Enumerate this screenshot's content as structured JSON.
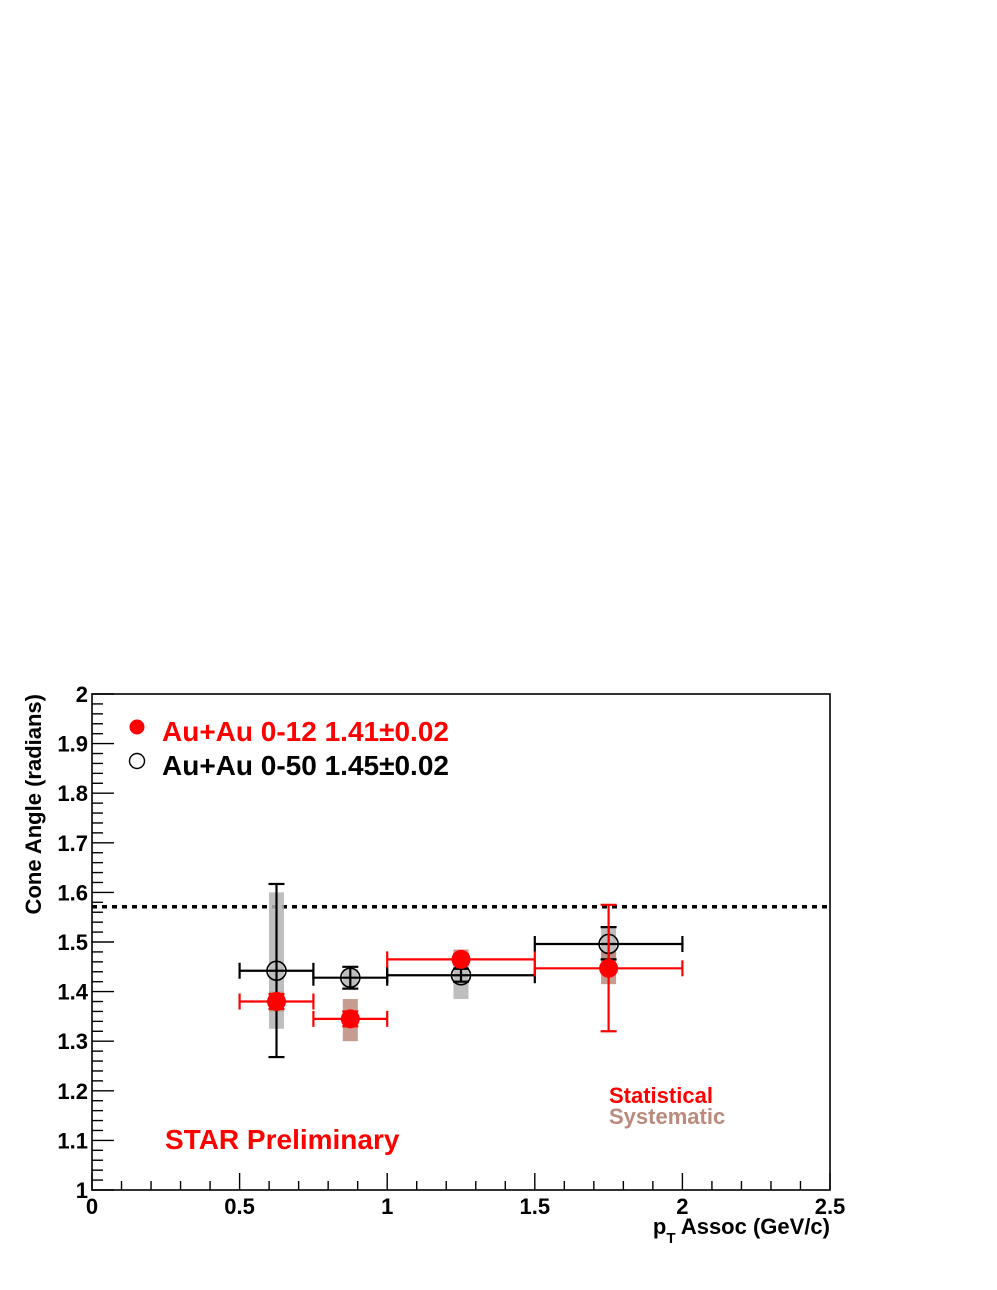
{
  "chart_data": {
    "type": "scatter",
    "title": "",
    "xlabel_main": "p",
    "xlabel_sub": "T",
    "xlabel_rest": " Assoc (GeV/c)",
    "ylabel": "Cone Angle (radians)",
    "xlim": [
      0,
      2.5
    ],
    "ylim": [
      1,
      2
    ],
    "x_ticks": [
      {
        "value": 0,
        "label": "0"
      },
      {
        "value": 0.5,
        "label": "0.5"
      },
      {
        "value": 1,
        "label": "1"
      },
      {
        "value": 1.5,
        "label": "1.5"
      },
      {
        "value": 2,
        "label": "2"
      },
      {
        "value": 2.5,
        "label": "2.5"
      }
    ],
    "y_ticks": [
      {
        "value": 1,
        "label": "1"
      },
      {
        "value": 1.1,
        "label": "1.1"
      },
      {
        "value": 1.2,
        "label": "1.2"
      },
      {
        "value": 1.3,
        "label": "1.3"
      },
      {
        "value": 1.4,
        "label": "1.4"
      },
      {
        "value": 1.5,
        "label": "1.5"
      },
      {
        "value": 1.6,
        "label": "1.6"
      },
      {
        "value": 1.7,
        "label": "1.7"
      },
      {
        "value": 1.8,
        "label": "1.8"
      },
      {
        "value": 1.9,
        "label": "1.9"
      },
      {
        "value": 2,
        "label": "2"
      }
    ],
    "reference_line": {
      "y": 1.571,
      "style": "dotted",
      "color": "#000000"
    },
    "legend_placement": "top-left",
    "series": [
      {
        "name": "Au+Au 0-12 1.41±0.02",
        "color": "#ff0000",
        "marker": "filled-circle",
        "syst_color": "#bc8a7c",
        "points": [
          {
            "x": 0.625,
            "y": 1.38,
            "x_lo": 0.5,
            "x_hi": 0.75,
            "stat_lo": 1.365,
            "stat_hi": 1.395,
            "syst_lo": 1.36,
            "syst_hi": 1.4
          },
          {
            "x": 0.875,
            "y": 1.345,
            "x_lo": 0.75,
            "x_hi": 1.0,
            "stat_lo": 1.33,
            "stat_hi": 1.36,
            "syst_lo": 1.3,
            "syst_hi": 1.385
          },
          {
            "x": 1.25,
            "y": 1.465,
            "x_lo": 1.0,
            "x_hi": 1.5,
            "stat_lo": 1.455,
            "stat_hi": 1.475,
            "syst_lo": 1.445,
            "syst_hi": 1.485
          },
          {
            "x": 1.75,
            "y": 1.447,
            "x_lo": 1.5,
            "x_hi": 2.0,
            "stat_lo": 1.32,
            "stat_hi": 1.575,
            "syst_lo": 1.415,
            "syst_hi": 1.48
          }
        ]
      },
      {
        "name": "Au+Au 0-50 1.45±0.02",
        "color": "#000000",
        "marker": "open-circle",
        "syst_color": "#b3b3b3",
        "points": [
          {
            "x": 0.625,
            "y": 1.442,
            "x_lo": 0.5,
            "x_hi": 0.75,
            "stat_lo": 1.268,
            "stat_hi": 1.617,
            "syst_lo": 1.325,
            "syst_hi": 1.6
          },
          {
            "x": 0.875,
            "y": 1.428,
            "x_lo": 0.75,
            "x_hi": 1.0,
            "stat_lo": 1.406,
            "stat_hi": 1.45,
            "syst_lo": 1.41,
            "syst_hi": 1.445
          },
          {
            "x": 1.25,
            "y": 1.433,
            "x_lo": 1.0,
            "x_hi": 1.5,
            "stat_lo": 1.42,
            "stat_hi": 1.446,
            "syst_lo": 1.385,
            "syst_hi": 1.48
          },
          {
            "x": 1.75,
            "y": 1.496,
            "x_lo": 1.5,
            "x_hi": 2.0,
            "stat_lo": 1.465,
            "stat_hi": 1.53,
            "syst_lo": 1.465,
            "syst_hi": 1.528
          }
        ]
      }
    ],
    "annotations": [
      {
        "text": "STAR Preliminary",
        "color": "#ff0000"
      },
      {
        "text": "Statistical",
        "color": "#ff0000"
      },
      {
        "text": "Systematic",
        "color": "#bc8a7c"
      }
    ]
  }
}
